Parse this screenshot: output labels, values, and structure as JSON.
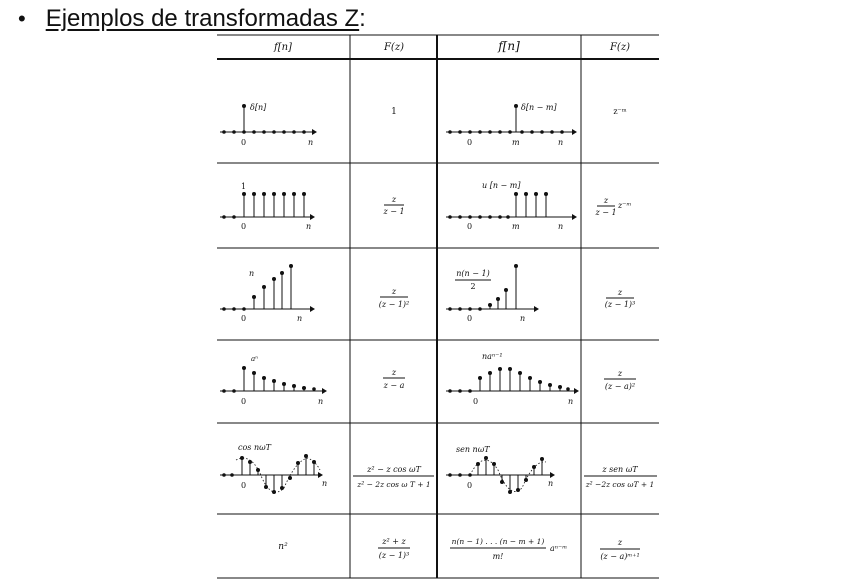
{
  "header": {
    "bullet": "•",
    "title": "Ejemplos de transformadas Z",
    "title_suffix": ":"
  },
  "table": {
    "headers": [
      "f[n]",
      "F(z)",
      "f[n]",
      "F(z)"
    ],
    "rows": [
      {
        "left_label": "δ[n]",
        "left_F": "1",
        "right_label": "δ[n − m]",
        "right_F": "z⁻ᵐ"
      },
      {
        "left_label": "1",
        "left_F_num": "z",
        "left_F_den": "z − 1",
        "right_label": "u [n − m]",
        "right_F_num": "z",
        "right_F_den": "z − 1",
        "right_F_tail": "z⁻ᵐ"
      },
      {
        "left_label": "n",
        "left_F_num": "z",
        "left_F_den": "(z − 1)²",
        "right_label_num": "n(n − 1)",
        "right_label_den": "2",
        "right_F_num": "z",
        "right_F_den": "(z − 1)³"
      },
      {
        "left_label": "aⁿ",
        "left_F_num": "z",
        "left_F_den": "z − a",
        "right_label": "naⁿ⁻¹",
        "right_F_num": "z",
        "right_F_den": "(z − a)²"
      },
      {
        "left_label": "cos nωT",
        "left_F_num": "z² − z cos ωT",
        "left_F_den": "z² − 2z cos ω T + 1",
        "right_label": "sen nωT",
        "right_F_num": "z sen ωT",
        "right_F_den": "z² −2z cos ωT + 1"
      },
      {
        "left_label": "n²",
        "left_F_num": "z² + z",
        "left_F_den": "(z − 1)³",
        "right_label_num": "n(n − 1) . . . (n − m + 1)",
        "right_label_den": "m!",
        "right_label_tail": "aⁿ⁻ᵐ",
        "right_F_num": "z",
        "right_F_den": "(z − a)ᵐ⁺¹"
      }
    ],
    "axis": {
      "zero": "0",
      "n": "n",
      "m": "m"
    }
  }
}
